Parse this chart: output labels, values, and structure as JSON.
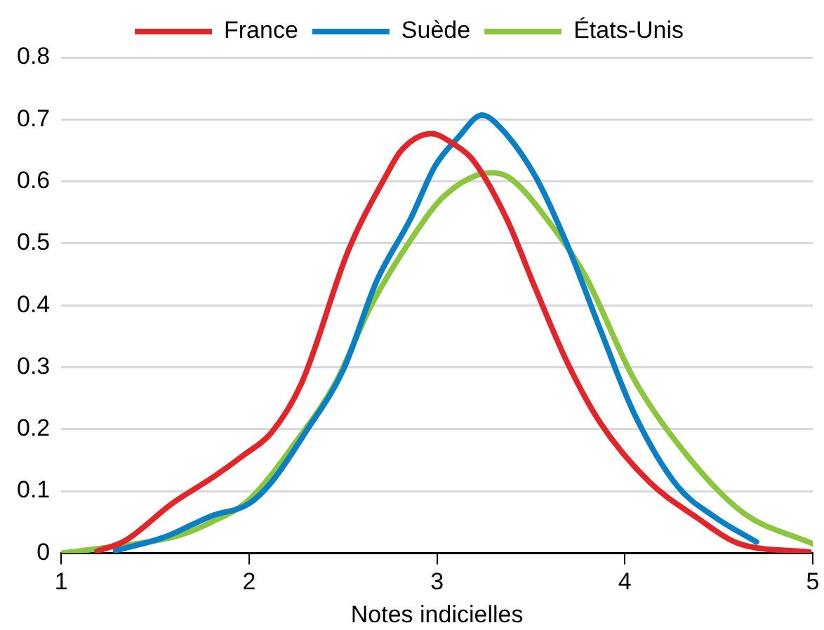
{
  "chart_data": {
    "type": "line",
    "xlabel": "Notes indicielles",
    "xlim": [
      1,
      5
    ],
    "xticks": [
      1,
      2,
      3,
      4,
      5
    ],
    "ylim": [
      0,
      0.8
    ],
    "yticks": [
      0,
      0.1,
      0.2,
      0.3,
      0.4,
      0.5,
      0.6,
      0.7,
      0.8
    ],
    "grid": "y",
    "legend": "top",
    "marker": "none",
    "line_style": "solid",
    "series": [
      {
        "name": "France",
        "color": "#e0262b",
        "x": [
          1.19,
          1.34,
          1.59,
          1.82,
          1.97,
          2.12,
          2.28,
          2.53,
          2.73,
          2.81,
          2.97,
          3.09,
          3.19,
          3.37,
          3.52,
          3.69,
          3.87,
          4.13,
          4.38,
          4.61,
          4.98
        ],
        "values": [
          0.003,
          0.02,
          0.08,
          0.125,
          0.158,
          0.195,
          0.275,
          0.49,
          0.61,
          0.65,
          0.677,
          0.66,
          0.635,
          0.54,
          0.43,
          0.31,
          0.21,
          0.115,
          0.058,
          0.015,
          0.002
        ]
      },
      {
        "name": "Suède",
        "color": "#0a7fc3",
        "x": [
          1.29,
          1.55,
          1.8,
          2.0,
          2.12,
          2.3,
          2.5,
          2.68,
          2.86,
          2.99,
          3.11,
          3.24,
          3.31,
          3.52,
          3.69,
          3.87,
          4.05,
          4.28,
          4.48,
          4.7
        ],
        "values": [
          0.004,
          0.026,
          0.06,
          0.08,
          0.115,
          0.195,
          0.295,
          0.44,
          0.54,
          0.625,
          0.67,
          0.707,
          0.695,
          0.61,
          0.5,
          0.36,
          0.225,
          0.108,
          0.058,
          0.018
        ]
      },
      {
        "name": "États-Unis",
        "color": "#8cc63f",
        "x": [
          1.0,
          1.19,
          1.62,
          1.8,
          2.0,
          2.25,
          2.46,
          2.65,
          2.87,
          3.04,
          3.29,
          3.39,
          3.62,
          3.79,
          4.05,
          4.33,
          4.63,
          5.0
        ],
        "values": [
          0.0,
          0.007,
          0.028,
          0.05,
          0.086,
          0.18,
          0.275,
          0.4,
          0.51,
          0.577,
          0.614,
          0.605,
          0.525,
          0.447,
          0.28,
          0.158,
          0.065,
          0.015
        ]
      }
    ]
  }
}
